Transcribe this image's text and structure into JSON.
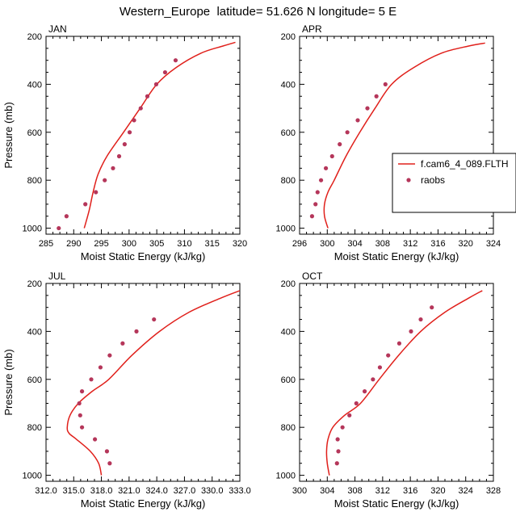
{
  "title": "Western_Europe  latitude= 51.626 N longitude= 5 E",
  "colors": {
    "model": "#e0201b",
    "obs": "#b5365a",
    "axis": "#000000"
  },
  "legend": {
    "model_label": "f.cam6_4_089.FLTH",
    "obs_label": "raobs",
    "placement": "right of APR panel"
  },
  "chart_data": [
    {
      "type": "line",
      "panel": "JAN",
      "xlabel": "Moist Static Energy (kJ/kg)",
      "ylabel": "Pressure (mb)",
      "xlim": [
        285,
        320
      ],
      "ylim": [
        1025,
        200
      ],
      "xticks": [
        285,
        290,
        295,
        300,
        305,
        310,
        315,
        320
      ],
      "xtick_labels": [
        "285",
        "290",
        "295",
        "300",
        "305",
        "310",
        "315",
        "320"
      ],
      "yticks": [
        200,
        400,
        600,
        800,
        1000
      ],
      "series": [
        {
          "name": "f.cam6_4_089.FLTH",
          "style": "line",
          "x": [
            291.9,
            292.8,
            293.5,
            294.4,
            296.0,
            299.0,
            302.0,
            305.0,
            308.5,
            313.0,
            317.0,
            319.2
          ],
          "y": [
            1000,
            925,
            850,
            775,
            700,
            600,
            500,
            400,
            330,
            270,
            240,
            225
          ]
        },
        {
          "name": "raobs",
          "style": "marker",
          "x": [
            287.3,
            288.7,
            292.1,
            294.0,
            295.6,
            297.1,
            298.2,
            299.2,
            300.1,
            300.9,
            302.1,
            303.3,
            304.9,
            306.5,
            308.4
          ],
          "y": [
            1000,
            950,
            900,
            850,
            800,
            750,
            700,
            650,
            600,
            550,
            500,
            450,
            400,
            350,
            300
          ]
        }
      ]
    },
    {
      "type": "line",
      "panel": "APR",
      "xlabel": "Moist Static Energy (kJ/kg)",
      "ylabel": "",
      "xlim": [
        296,
        324
      ],
      "ylim": [
        1025,
        200
      ],
      "xticks": [
        296,
        300,
        304,
        308,
        312,
        316,
        320,
        324
      ],
      "xtick_labels": [
        "296",
        "300",
        "304",
        "308",
        "312",
        "316",
        "320",
        "324"
      ],
      "yticks": [
        200,
        400,
        600,
        800,
        1000
      ],
      "series": [
        {
          "name": "f.cam6_4_089.FLTH",
          "style": "line",
          "x": [
            300.1,
            299.6,
            299.6,
            300.1,
            301.0,
            302.7,
            304.7,
            306.9,
            309.3,
            312.5,
            316.5,
            320.5,
            322.8
          ],
          "y": [
            1000,
            950,
            900,
            850,
            800,
            700,
            600,
            500,
            400,
            330,
            270,
            240,
            228
          ]
        },
        {
          "name": "raobs",
          "style": "marker",
          "x": [
            297.8,
            298.3,
            298.6,
            299.1,
            299.8,
            300.7,
            301.8,
            302.9,
            304.4,
            305.8,
            307.1,
            308.4
          ],
          "y": [
            950,
            900,
            850,
            800,
            750,
            700,
            650,
            600,
            550,
            500,
            450,
            400
          ]
        }
      ]
    },
    {
      "type": "line",
      "panel": "JUL",
      "xlabel": "Moist Static Energy (kJ/kg)",
      "ylabel": "Pressure (mb)",
      "xlim": [
        312,
        333
      ],
      "ylim": [
        1025,
        200
      ],
      "xticks": [
        312,
        315,
        318,
        321,
        324,
        327,
        330,
        333
      ],
      "xtick_labels": [
        "312.0",
        "315.0",
        "318.0",
        "321.0",
        "324.0",
        "327.0",
        "330.0",
        "333.0"
      ],
      "yticks": [
        200,
        400,
        600,
        800,
        1000
      ],
      "series": [
        {
          "name": "f.cam6_4_089.FLTH",
          "style": "line",
          "x": [
            318.0,
            317.7,
            316.8,
            315.3,
            314.5,
            314.3,
            314.6,
            315.5,
            317.0,
            318.8,
            321.3,
            324.3,
            327.5,
            331.0,
            333.0
          ],
          "y": [
            1000,
            950,
            900,
            850,
            825,
            800,
            750,
            700,
            650,
            600,
            500,
            400,
            320,
            260,
            230
          ]
        },
        {
          "name": "raobs",
          "style": "marker",
          "x": [
            318.9,
            318.6,
            317.3,
            315.9,
            315.7,
            315.6,
            315.9,
            316.9,
            317.9,
            318.9,
            320.3,
            321.8,
            323.7
          ],
          "y": [
            950,
            900,
            850,
            800,
            750,
            700,
            650,
            600,
            550,
            500,
            450,
            400,
            350
          ]
        }
      ]
    },
    {
      "type": "line",
      "panel": "OCT",
      "xlabel": "Moist Static Energy (kJ/kg)",
      "ylabel": "",
      "xlim": [
        300,
        328
      ],
      "ylim": [
        1025,
        200
      ],
      "xticks": [
        300,
        304,
        308,
        312,
        316,
        320,
        324,
        328
      ],
      "xtick_labels": [
        "300",
        "304",
        "308",
        "312",
        "316",
        "320",
        "324",
        "328"
      ],
      "yticks": [
        200,
        400,
        600,
        800,
        1000
      ],
      "series": [
        {
          "name": "f.cam6_4_089.FLTH",
          "style": "line",
          "x": [
            304.3,
            304.0,
            303.9,
            304.1,
            304.8,
            306.5,
            308.8,
            311.5,
            314.3,
            317.5,
            321.0,
            324.5,
            326.4
          ],
          "y": [
            1000,
            950,
            900,
            850,
            800,
            750,
            700,
            600,
            500,
            400,
            320,
            260,
            230
          ]
        },
        {
          "name": "raobs",
          "style": "marker",
          "x": [
            305.4,
            305.6,
            305.5,
            306.2,
            307.2,
            308.2,
            309.4,
            310.6,
            311.6,
            312.8,
            314.4,
            316.1,
            317.5,
            319.1
          ],
          "y": [
            950,
            900,
            850,
            800,
            750,
            700,
            650,
            600,
            550,
            500,
            450,
            400,
            350,
            300
          ]
        }
      ]
    }
  ]
}
